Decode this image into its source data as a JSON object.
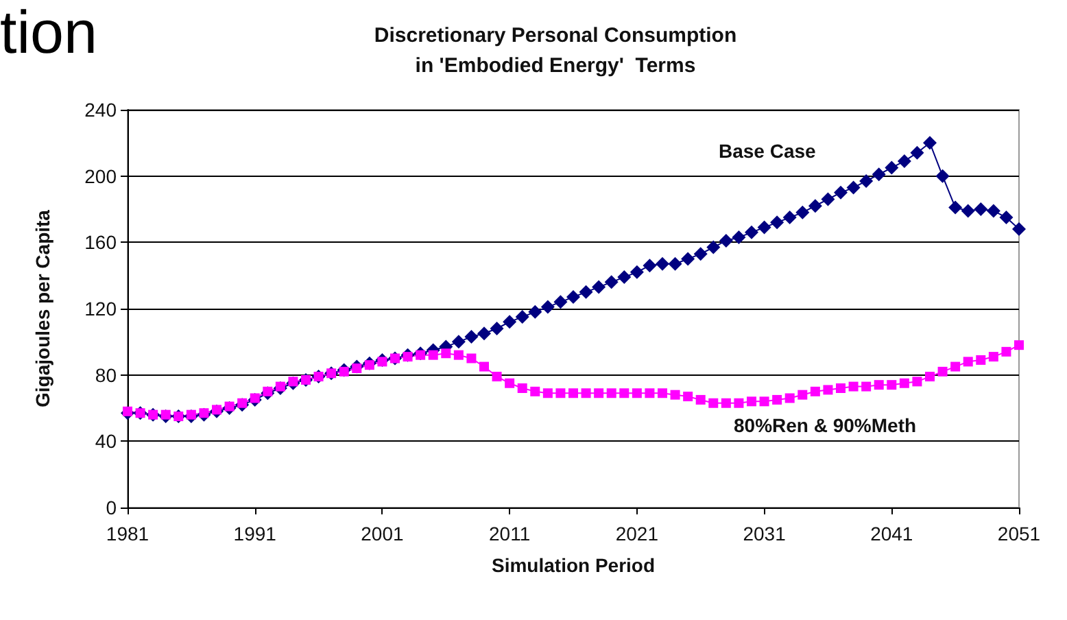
{
  "chart_data": {
    "type": "line",
    "title": "Discretionary Personal Consumption\nin 'Embodied Energy'  Terms",
    "xlabel": "Simulation Period",
    "ylabel": "Gigajoules per Capita",
    "annotations": [
      "tion"
    ],
    "x": [
      1981,
      1982,
      1983,
      1984,
      1985,
      1986,
      1987,
      1988,
      1989,
      1990,
      1991,
      1992,
      1993,
      1994,
      1995,
      1996,
      1997,
      1998,
      1999,
      2000,
      2001,
      2002,
      2003,
      2004,
      2005,
      2006,
      2007,
      2008,
      2009,
      2010,
      2011,
      2012,
      2013,
      2014,
      2015,
      2016,
      2017,
      2018,
      2019,
      2020,
      2021,
      2022,
      2023,
      2024,
      2025,
      2026,
      2027,
      2028,
      2029,
      2030,
      2031,
      2032,
      2033,
      2034,
      2035,
      2036,
      2037,
      2038,
      2039,
      2040,
      2041,
      2042,
      2043,
      2044,
      2045,
      2046,
      2047,
      2048,
      2049,
      2050,
      2051
    ],
    "series": [
      {
        "name": "Base Case",
        "color": "#000080",
        "marker": "diamond",
        "values": [
          57,
          57,
          56,
          55,
          55,
          55,
          56,
          58,
          60,
          62,
          65,
          69,
          72,
          75,
          77,
          79,
          81,
          83,
          85,
          87,
          89,
          90,
          92,
          93,
          95,
          97,
          100,
          103,
          105,
          108,
          112,
          115,
          118,
          121,
          124,
          127,
          130,
          133,
          136,
          139,
          142,
          146,
          147,
          147,
          150,
          153,
          157,
          161,
          163,
          166,
          169,
          172,
          175,
          178,
          182,
          186,
          190,
          193,
          197,
          201,
          205,
          209,
          214,
          220,
          200,
          181,
          179,
          180,
          179,
          175,
          168
        ]
      },
      {
        "name": "80%Ren & 90%Meth",
        "color": "#ff00ff",
        "marker": "square",
        "values": [
          58,
          57,
          56,
          56,
          55,
          56,
          57,
          59,
          61,
          63,
          66,
          70,
          73,
          76,
          77,
          79,
          81,
          82,
          84,
          86,
          88,
          90,
          91,
          92,
          92,
          93,
          92,
          90,
          85,
          79,
          75,
          72,
          70,
          69,
          69,
          69,
          69,
          69,
          69,
          69,
          69,
          69,
          69,
          68,
          67,
          65,
          63,
          63,
          63,
          64,
          64,
          65,
          66,
          68,
          70,
          71,
          72,
          73,
          73,
          74,
          74,
          75,
          76,
          79,
          82,
          85,
          88,
          89,
          91,
          94,
          98
        ]
      }
    ],
    "xlim": [
      1981,
      2051
    ],
    "xticks": [
      1981,
      1991,
      2001,
      2011,
      2021,
      2031,
      2041,
      2051
    ],
    "ylim": [
      0,
      240
    ],
    "yticks": [
      0,
      40,
      80,
      120,
      160,
      200,
      240
    ],
    "grid": "y",
    "legend": false
  }
}
